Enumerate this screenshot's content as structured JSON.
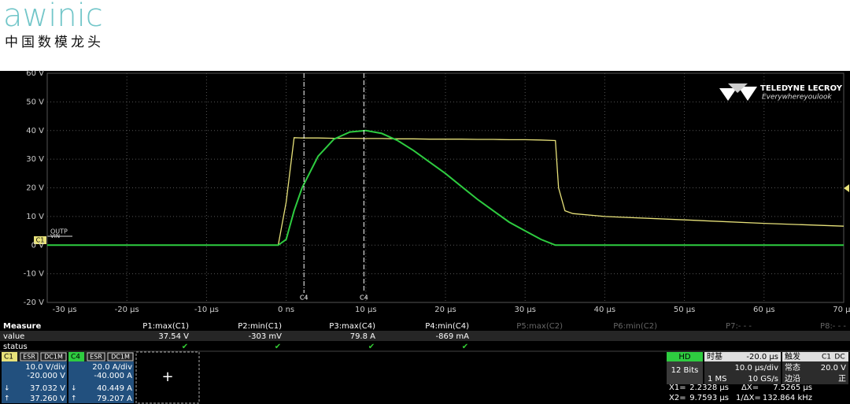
{
  "header": {
    "logo": "awinic",
    "tagline": "中国数模龙头"
  },
  "brand": {
    "name": "TELEDYNE LECROY",
    "slogan": "Everywhereyoulook"
  },
  "chart_data": {
    "type": "line",
    "x": [
      -30,
      -1,
      0,
      1,
      2,
      4,
      6,
      8,
      10,
      12,
      14,
      16,
      18,
      20,
      22,
      24,
      26,
      28,
      30,
      32,
      33.8,
      34.2,
      35,
      36,
      40,
      50,
      60,
      70
    ],
    "series": [
      {
        "name": "C1",
        "color": "#e8e27a",
        "values": [
          0,
          0,
          15,
          37.5,
          37.4,
          37.4,
          37.3,
          37.3,
          37.2,
          37.2,
          37.1,
          37.1,
          37,
          37,
          37,
          36.9,
          36.9,
          36.8,
          36.8,
          36.7,
          36.5,
          20,
          12,
          11,
          10,
          8.8,
          7.6,
          6.6
        ]
      },
      {
        "name": "C4",
        "color": "#2ecc40",
        "values": [
          0,
          0,
          2,
          12,
          20,
          31,
          37,
          39.5,
          40,
          39,
          36.5,
          33,
          29,
          25,
          20.5,
          16,
          12,
          8,
          5,
          2,
          0,
          0,
          0,
          0,
          0,
          0,
          0,
          0
        ]
      }
    ],
    "xlim": [
      -30,
      70
    ],
    "ylim": [
      -20,
      60
    ],
    "xticks": [
      {
        "value": -30,
        "label": "-30 µs"
      },
      {
        "value": -20,
        "label": "-20 µs"
      },
      {
        "value": -10,
        "label": "-10 µs"
      },
      {
        "value": 0,
        "label": "0 ns"
      },
      {
        "value": 10,
        "label": "10 µs"
      },
      {
        "value": 20,
        "label": "20 µs"
      },
      {
        "value": 30,
        "label": "30 µs"
      },
      {
        "value": 40,
        "label": "40 µs"
      },
      {
        "value": 50,
        "label": "50 µs"
      },
      {
        "value": 60,
        "label": "60 µs"
      },
      {
        "value": 70,
        "label": "70 µs"
      }
    ],
    "yticks": [
      {
        "value": -20,
        "label": "-20 V"
      },
      {
        "value": -10,
        "label": "-10 V"
      },
      {
        "value": 0,
        "label": "0 V"
      },
      {
        "value": 10,
        "label": "10 V"
      },
      {
        "value": 20,
        "label": "20 V"
      },
      {
        "value": 30,
        "label": "30 V"
      },
      {
        "value": 40,
        "label": "40 V"
      },
      {
        "value": 50,
        "label": "50 V"
      },
      {
        "value": 60,
        "label": "60 V"
      }
    ],
    "grid": true,
    "cursors": [
      {
        "x": 2.2328,
        "label": "C4"
      },
      {
        "x": 9.7593,
        "label": "C4"
      }
    ],
    "trace_labels": [
      "OUTP",
      "VIN"
    ]
  },
  "measure": {
    "header": "Measure",
    "row_labels": [
      "value",
      "status"
    ],
    "params": [
      {
        "name": "P1:max(C1)",
        "value": "37.54 V",
        "status": "✔"
      },
      {
        "name": "P2:min(C1)",
        "value": "-303 mV",
        "status": "✔"
      },
      {
        "name": "P3:max(C4)",
        "value": "79.8 A",
        "status": "✔"
      },
      {
        "name": "P4:min(C4)",
        "value": "-869 mA",
        "status": "✔"
      },
      {
        "name": "P5:max(C2)"
      },
      {
        "name": "P6:min(C2)"
      },
      {
        "name": "P7:- - -"
      },
      {
        "name": "P8:- - -"
      }
    ]
  },
  "channels": [
    {
      "tags": [
        "ESR",
        "DC1M"
      ],
      "scale": "10.0 V/div",
      "offset": "-20.000 V",
      "cursor1": "37.032 V",
      "cursor2": "37.260 V"
    },
    {
      "tags": [
        "ESR",
        "DC1M"
      ],
      "scale": "20.0 A/div",
      "offset": "-40.000 A",
      "cursor1": "40.449 A",
      "cursor2": "79.207 A"
    }
  ],
  "add": "+",
  "acquisition": {
    "mode": "HD",
    "bits": "12 Bits",
    "points": "1 MS"
  },
  "timebase": {
    "label": "时基",
    "delay": "-20.0 µs",
    "scale": "10.0 µs/div",
    "rate": "10 GS/s"
  },
  "trigger": {
    "label": "触发",
    "source": "C1",
    "coupling": "DC",
    "mode": "常态",
    "level": "20.0 V",
    "type": "边沿",
    "slope": "正"
  },
  "cursor_readout": {
    "x1_label": "X1=",
    "x1": "2.2328 µs",
    "dx_label": "ΔX=",
    "dx": "7.5265 µs",
    "x2_label": "X2=",
    "x2": "9.7593 µs",
    "inv_label": "1/ΔX=",
    "inv": "132.864 kHz"
  }
}
